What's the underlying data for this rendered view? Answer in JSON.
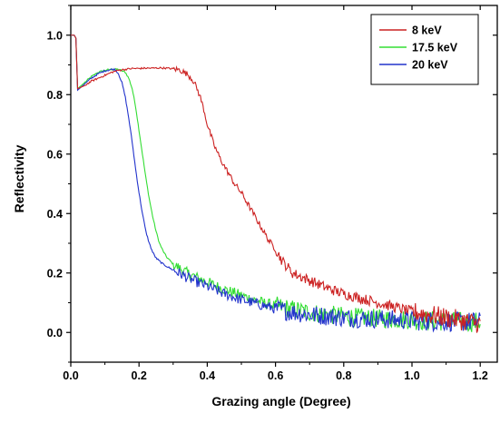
{
  "chart_data": {
    "type": "line",
    "title": "",
    "xlabel": "Grazing angle (Degree)",
    "ylabel": "Reflectivity",
    "xlim": [
      0.0,
      1.25
    ],
    "ylim": [
      -0.1,
      1.1
    ],
    "xticks": [
      0.0,
      0.2,
      0.4,
      0.6,
      0.8,
      1.0,
      1.2
    ],
    "xtick_labels": [
      "0.0",
      "0.2",
      "0.4",
      "0.6",
      "0.8",
      "1.0",
      "1.2"
    ],
    "yticks": [
      0.0,
      0.2,
      0.4,
      0.6,
      0.8,
      1.0
    ],
    "ytick_labels": [
      "0.0",
      "0.2",
      "0.4",
      "0.6",
      "0.8",
      "1.0"
    ],
    "grid": false,
    "legend_position": "top-right",
    "series": [
      {
        "name": "8 keV",
        "color": "#cc2222",
        "x": [
          0.0,
          0.01,
          0.015,
          0.02,
          0.04,
          0.06,
          0.08,
          0.1,
          0.12,
          0.14,
          0.16,
          0.18,
          0.2,
          0.22,
          0.24,
          0.26,
          0.28,
          0.3,
          0.32,
          0.34,
          0.35,
          0.36,
          0.37,
          0.38,
          0.39,
          0.4,
          0.42,
          0.44,
          0.46,
          0.48,
          0.5,
          0.52,
          0.54,
          0.56,
          0.58,
          0.6,
          0.62,
          0.65,
          0.7,
          0.75,
          0.8,
          0.85,
          0.9,
          0.95,
          1.0,
          1.05,
          1.1,
          1.15,
          1.2
        ],
        "y": [
          1.0,
          1.0,
          0.99,
          0.82,
          0.83,
          0.845,
          0.855,
          0.865,
          0.875,
          0.882,
          0.885,
          0.888,
          0.888,
          0.889,
          0.889,
          0.89,
          0.889,
          0.887,
          0.883,
          0.87,
          0.86,
          0.845,
          0.82,
          0.79,
          0.75,
          0.7,
          0.63,
          0.58,
          0.54,
          0.5,
          0.47,
          0.43,
          0.39,
          0.35,
          0.31,
          0.28,
          0.24,
          0.2,
          0.175,
          0.15,
          0.13,
          0.115,
          0.1,
          0.085,
          0.07,
          0.06,
          0.05,
          0.04,
          0.03
        ]
      },
      {
        "name": "17.5 keV",
        "color": "#33dd33",
        "x": [
          0.0,
          0.01,
          0.015,
          0.02,
          0.04,
          0.06,
          0.08,
          0.1,
          0.12,
          0.14,
          0.16,
          0.17,
          0.18,
          0.19,
          0.2,
          0.21,
          0.22,
          0.23,
          0.24,
          0.25,
          0.26,
          0.27,
          0.28,
          0.3,
          0.32,
          0.35,
          0.4,
          0.45,
          0.5,
          0.55,
          0.6,
          0.65,
          0.7,
          0.75,
          0.8,
          0.85,
          0.9,
          0.95,
          1.0,
          1.05,
          1.1,
          1.15,
          1.2
        ],
        "y": [
          1.0,
          1.0,
          0.99,
          0.82,
          0.84,
          0.86,
          0.875,
          0.882,
          0.885,
          0.885,
          0.875,
          0.855,
          0.82,
          0.76,
          0.68,
          0.6,
          0.52,
          0.45,
          0.39,
          0.34,
          0.3,
          0.275,
          0.255,
          0.23,
          0.215,
          0.195,
          0.17,
          0.145,
          0.125,
          0.105,
          0.09,
          0.078,
          0.068,
          0.06,
          0.055,
          0.05,
          0.047,
          0.045,
          0.042,
          0.04,
          0.038,
          0.035,
          0.035
        ]
      },
      {
        "name": "20 keV",
        "color": "#2233cc",
        "x": [
          0.0,
          0.01,
          0.015,
          0.02,
          0.04,
          0.06,
          0.08,
          0.1,
          0.12,
          0.13,
          0.14,
          0.15,
          0.16,
          0.17,
          0.18,
          0.19,
          0.2,
          0.21,
          0.22,
          0.23,
          0.24,
          0.25,
          0.27,
          0.3,
          0.35,
          0.4,
          0.45,
          0.5,
          0.55,
          0.6,
          0.65,
          0.7,
          0.75,
          0.8,
          0.85,
          0.9,
          0.95,
          1.0,
          1.05,
          1.1,
          1.15,
          1.2
        ],
        "y": [
          1.0,
          1.0,
          0.99,
          0.815,
          0.835,
          0.855,
          0.87,
          0.88,
          0.885,
          0.885,
          0.87,
          0.84,
          0.79,
          0.72,
          0.64,
          0.55,
          0.47,
          0.4,
          0.34,
          0.3,
          0.27,
          0.25,
          0.23,
          0.21,
          0.18,
          0.155,
          0.13,
          0.11,
          0.095,
          0.08,
          0.068,
          0.06,
          0.055,
          0.05,
          0.047,
          0.045,
          0.043,
          0.04,
          0.038,
          0.037,
          0.036,
          0.035
        ]
      }
    ]
  }
}
